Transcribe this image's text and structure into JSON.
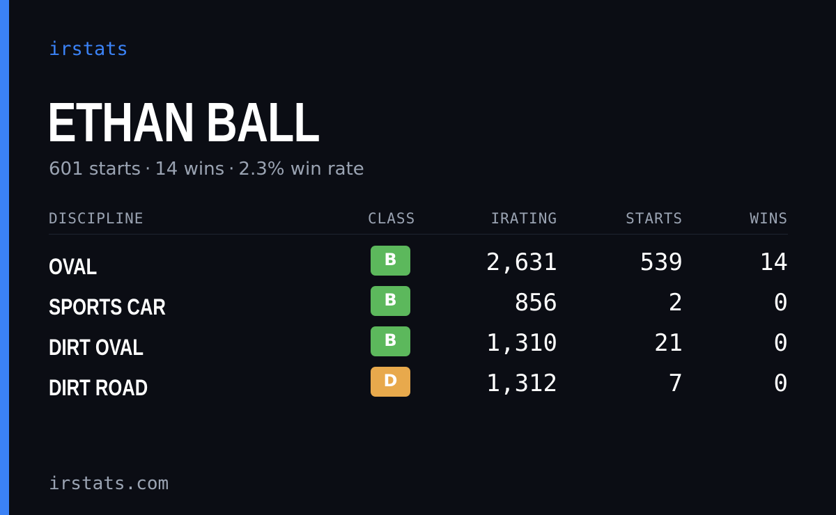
{
  "brand": {
    "label": "irstats"
  },
  "driver": {
    "name": "ETHAN BALL",
    "starts": "601 starts",
    "wins": "14 wins",
    "win_rate": "2.3% win rate",
    "separator": "·"
  },
  "table": {
    "headers": {
      "discipline": "DISCIPLINE",
      "class": "CLASS",
      "irating": "IRATING",
      "starts": "STARTS",
      "wins": "WINS"
    },
    "rows": [
      {
        "discipline": "OVAL",
        "class": "B",
        "class_color": "#5cb85c",
        "irating": "2,631",
        "starts": "539",
        "wins": "14"
      },
      {
        "discipline": "SPORTS CAR",
        "class": "B",
        "class_color": "#5cb85c",
        "irating": "856",
        "starts": "2",
        "wins": "0"
      },
      {
        "discipline": "DIRT OVAL",
        "class": "B",
        "class_color": "#5cb85c",
        "irating": "1,310",
        "starts": "21",
        "wins": "0"
      },
      {
        "discipline": "DIRT ROAD",
        "class": "D",
        "class_color": "#e8a94c",
        "irating": "1,312",
        "starts": "7",
        "wins": "0"
      }
    ]
  },
  "footer": {
    "url": "irstats.com"
  },
  "colors": {
    "accent": "#3b82f6",
    "background": "#0b0d14",
    "muted": "#9aa3b2"
  }
}
